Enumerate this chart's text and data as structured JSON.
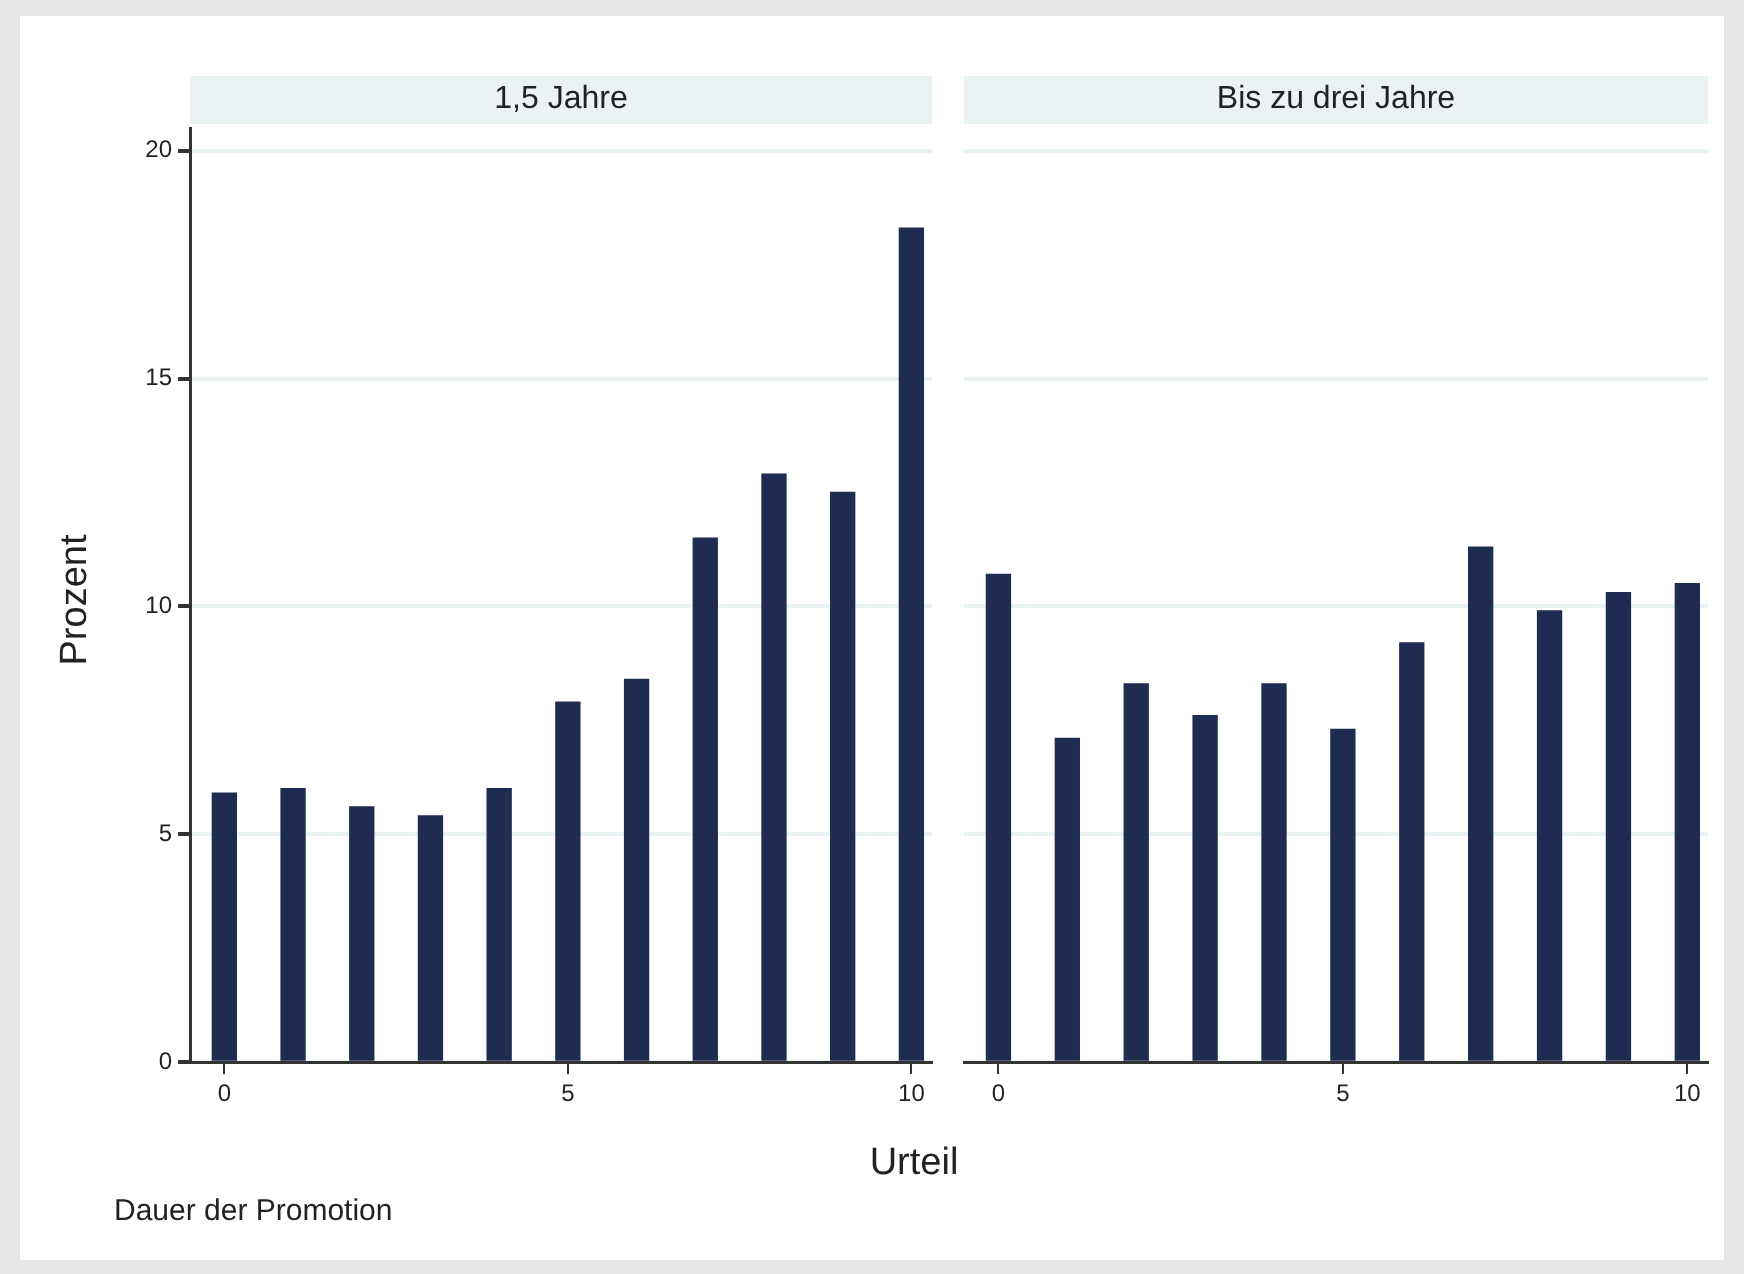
{
  "chart_data": [
    {
      "type": "bar",
      "title": "1,5 Jahre",
      "xlabel": "Urteil",
      "ylabel": "Prozent",
      "annotations": [
        "Dauer der Promotion"
      ],
      "x": [
        0,
        1,
        2,
        3,
        4,
        5,
        6,
        7,
        8,
        9,
        10
      ],
      "values": [
        5.9,
        6.0,
        5.6,
        5.4,
        6.0,
        7.9,
        8.4,
        11.5,
        12.9,
        12.5,
        18.3
      ],
      "color": "#1f2c52",
      "xlim": [
        -0.5,
        10.3
      ],
      "xticks": [
        0,
        5,
        10
      ],
      "ylim": [
        0,
        20.5
      ],
      "yticks": [
        0,
        5,
        10,
        15,
        20
      ],
      "grid": "y"
    },
    {
      "type": "bar",
      "title": "Bis zu drei Jahre",
      "x": [
        0,
        1,
        2,
        3,
        4,
        5,
        6,
        7,
        8,
        9,
        10
      ],
      "values": [
        10.7,
        7.1,
        8.3,
        7.6,
        8.3,
        7.3,
        9.2,
        11.3,
        9.9,
        10.3,
        10.5
      ],
      "color": "#1f2c52",
      "xlim": [
        -0.5,
        10.3
      ],
      "xticks": [
        0,
        5,
        10
      ],
      "yticks": [
        0,
        5,
        10,
        15,
        20
      ],
      "grid": "y",
      "tick_labels": "x"
    }
  ]
}
